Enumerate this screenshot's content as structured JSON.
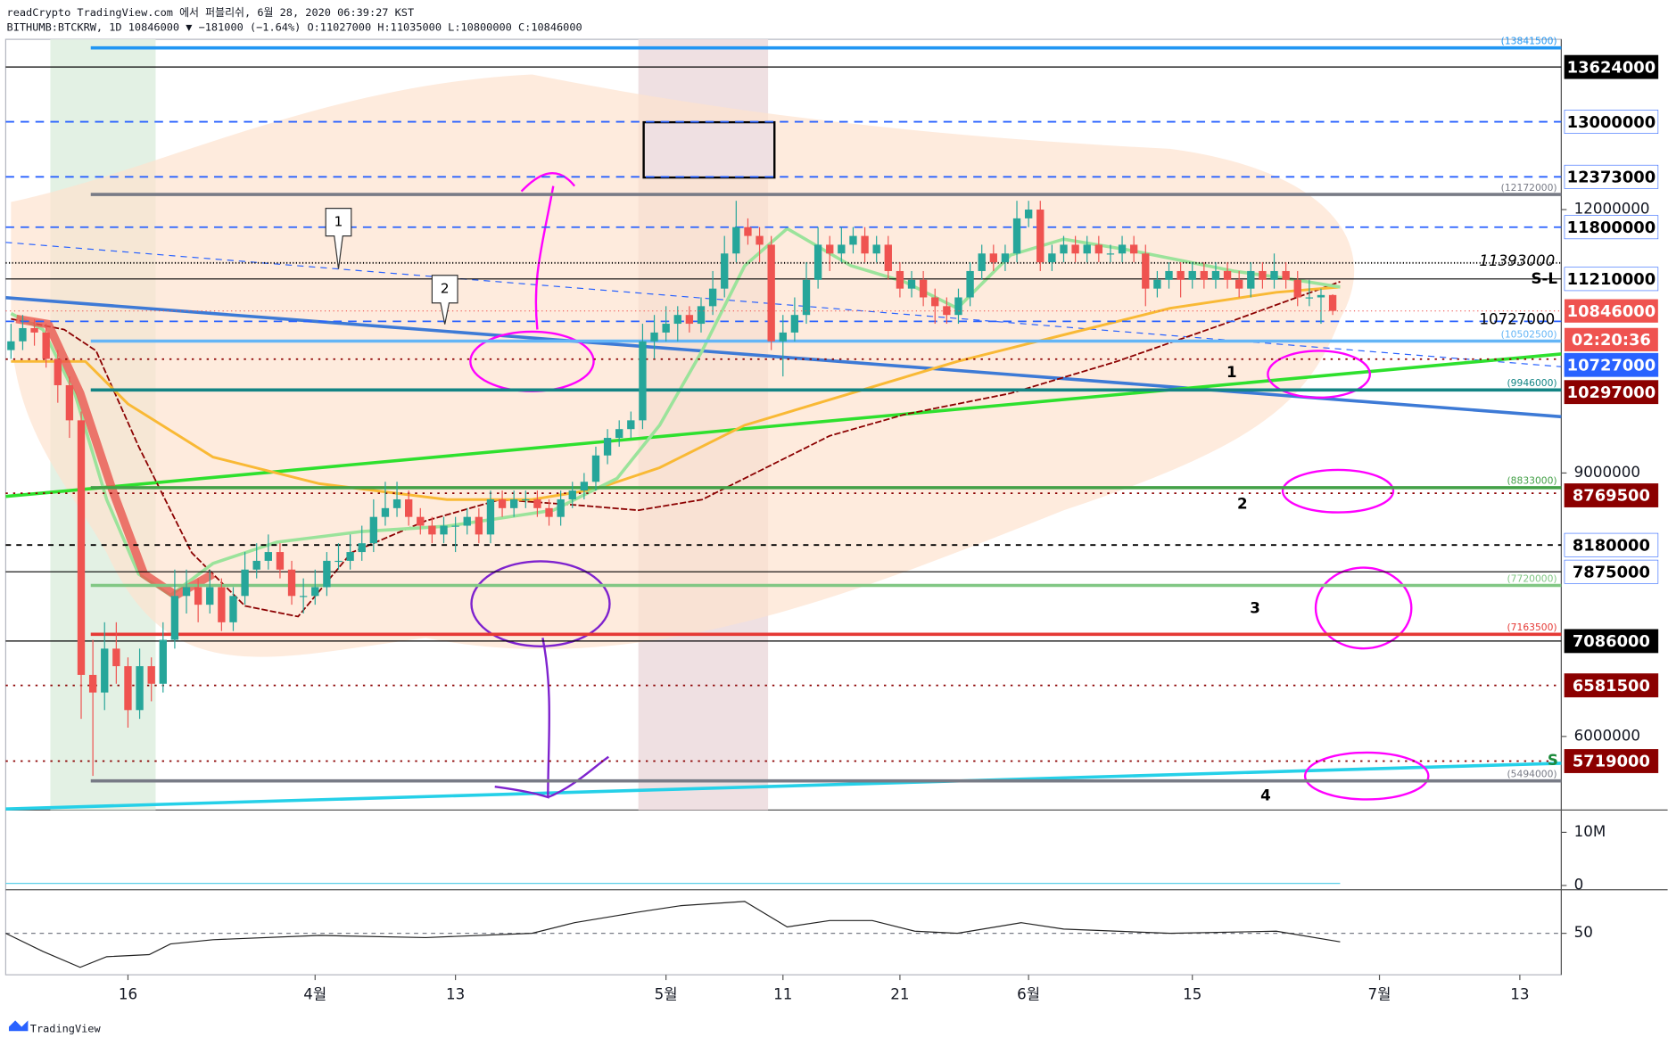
{
  "header": {
    "line1": "readCrypto TradingView.com 에서 퍼블리쉬, 6월 28, 2020 06:39:27 KST",
    "line2": "BITHUMB:BTCKRW, 1D 10846000 ▼ −181000 (−1.64%) O:11027000 H:11035000 L:10800000 C:10846000"
  },
  "footer": {
    "brand": "TradingView"
  },
  "chart_data": {
    "type": "candlestick",
    "symbol": "BITHUMB:BTCKRW",
    "interval": "1D",
    "candles": [
      [
        10400000,
        10700000,
        10300000,
        10500000
      ],
      [
        10500000,
        10800000,
        10400000,
        10650000
      ],
      [
        10650000,
        10750000,
        10450000,
        10600000
      ],
      [
        10600000,
        10700000,
        10200000,
        10300000
      ],
      [
        10300000,
        10400000,
        9800000,
        10000000
      ],
      [
        10000000,
        10100000,
        9400000,
        9600000
      ],
      [
        9600000,
        9700000,
        6200000,
        6700000
      ],
      [
        6700000,
        7100000,
        5550000,
        6500000
      ],
      [
        6500000,
        7300000,
        6300000,
        7000000
      ],
      [
        7000000,
        7300000,
        6600000,
        6800000
      ],
      [
        6800000,
        6900000,
        6100000,
        6300000
      ],
      [
        6300000,
        7000000,
        6200000,
        6800000
      ],
      [
        6800000,
        6900000,
        6400000,
        6600000
      ],
      [
        6600000,
        7300000,
        6500000,
        7100000
      ],
      [
        7100000,
        7900000,
        7000000,
        7600000
      ],
      [
        7600000,
        7900000,
        7400000,
        7700000
      ],
      [
        7700000,
        7800000,
        7300000,
        7500000
      ],
      [
        7500000,
        7900000,
        7400000,
        7700000
      ],
      [
        7700000,
        7800000,
        7200000,
        7300000
      ],
      [
        7300000,
        7700000,
        7200000,
        7600000
      ],
      [
        7600000,
        8100000,
        7500000,
        7900000
      ],
      [
        7900000,
        8200000,
        7800000,
        8000000
      ],
      [
        8000000,
        8300000,
        7900000,
        8100000
      ],
      [
        8100000,
        8200000,
        7800000,
        7900000
      ],
      [
        7900000,
        8000000,
        7500000,
        7600000
      ],
      [
        7600000,
        7800000,
        7400000,
        7600000
      ],
      [
        7600000,
        7900000,
        7500000,
        7700000
      ],
      [
        7700000,
        8100000,
        7600000,
        8000000
      ],
      [
        8000000,
        8200000,
        7900000,
        8000000
      ],
      [
        8000000,
        8300000,
        7900000,
        8100000
      ],
      [
        8100000,
        8400000,
        8000000,
        8200000
      ],
      [
        8200000,
        8700000,
        8100000,
        8500000
      ],
      [
        8500000,
        8900000,
        8400000,
        8600000
      ],
      [
        8600000,
        8900000,
        8500000,
        8700000
      ],
      [
        8700000,
        8800000,
        8400000,
        8500000
      ],
      [
        8500000,
        8600000,
        8300000,
        8400000
      ],
      [
        8400000,
        8500000,
        8200000,
        8300000
      ],
      [
        8300000,
        8500000,
        8200000,
        8400000
      ],
      [
        8400000,
        8500000,
        8100000,
        8400000
      ],
      [
        8400000,
        8600000,
        8300000,
        8500000
      ],
      [
        8500000,
        8600000,
        8200000,
        8300000
      ],
      [
        8300000,
        8800000,
        8200000,
        8700000
      ],
      [
        8700000,
        8800000,
        8500000,
        8600000
      ],
      [
        8600000,
        8800000,
        8500000,
        8700000
      ],
      [
        8700000,
        8800000,
        8600000,
        8700000
      ],
      [
        8700000,
        8800000,
        8500000,
        8600000
      ],
      [
        8600000,
        8700000,
        8400000,
        8500000
      ],
      [
        8500000,
        8800000,
        8400000,
        8700000
      ],
      [
        8700000,
        8900000,
        8600000,
        8800000
      ],
      [
        8800000,
        9000000,
        8700000,
        8900000
      ],
      [
        8900000,
        9300000,
        8800000,
        9200000
      ],
      [
        9200000,
        9500000,
        9100000,
        9400000
      ],
      [
        9400000,
        9600000,
        9300000,
        9500000
      ],
      [
        9500000,
        9700000,
        9400000,
        9600000
      ],
      [
        9600000,
        10700000,
        9500000,
        10500000
      ],
      [
        10500000,
        10800000,
        10300000,
        10600000
      ],
      [
        10600000,
        10900000,
        10500000,
        10700000
      ],
      [
        10700000,
        10900000,
        10500000,
        10800000
      ],
      [
        10800000,
        10900000,
        10600000,
        10700000
      ],
      [
        10700000,
        11000000,
        10600000,
        10900000
      ],
      [
        10900000,
        11300000,
        10800000,
        11100000
      ],
      [
        11100000,
        11700000,
        11000000,
        11500000
      ],
      [
        11500000,
        12100000,
        11400000,
        11800000
      ],
      [
        11800000,
        11900000,
        11600000,
        11700000
      ],
      [
        11700000,
        11800000,
        11400000,
        11600000
      ],
      [
        11600000,
        11700000,
        10400000,
        10500000
      ],
      [
        10500000,
        10800000,
        10100000,
        10600000
      ],
      [
        10600000,
        11000000,
        10500000,
        10800000
      ],
      [
        10800000,
        11400000,
        10700000,
        11200000
      ],
      [
        11200000,
        11800000,
        11100000,
        11600000
      ],
      [
        11600000,
        11700000,
        11300000,
        11500000
      ],
      [
        11500000,
        11800000,
        11400000,
        11600000
      ],
      [
        11600000,
        11800000,
        11500000,
        11700000
      ],
      [
        11700000,
        11800000,
        11400000,
        11500000
      ],
      [
        11500000,
        11700000,
        11400000,
        11600000
      ],
      [
        11600000,
        11700000,
        11200000,
        11300000
      ],
      [
        11300000,
        11400000,
        11000000,
        11100000
      ],
      [
        11100000,
        11300000,
        11000000,
        11200000
      ],
      [
        11200000,
        11300000,
        10900000,
        11000000
      ],
      [
        11000000,
        11100000,
        10700000,
        10900000
      ],
      [
        10900000,
        11000000,
        10700000,
        10800000
      ],
      [
        10800000,
        11100000,
        10700000,
        11000000
      ],
      [
        11000000,
        11400000,
        10900000,
        11300000
      ],
      [
        11300000,
        11600000,
        11200000,
        11500000
      ],
      [
        11500000,
        11600000,
        11300000,
        11400000
      ],
      [
        11400000,
        11600000,
        11300000,
        11500000
      ],
      [
        11500000,
        12100000,
        11400000,
        11900000
      ],
      [
        11900000,
        12100000,
        11800000,
        12000000
      ],
      [
        12000000,
        12100000,
        11300000,
        11400000
      ],
      [
        11400000,
        11600000,
        11300000,
        11500000
      ],
      [
        11500000,
        11700000,
        11400000,
        11600000
      ],
      [
        11600000,
        11700000,
        11400000,
        11500000
      ],
      [
        11500000,
        11700000,
        11400000,
        11600000
      ],
      [
        11600000,
        11700000,
        11400000,
        11500000
      ],
      [
        11500000,
        11600000,
        11400000,
        11500000
      ],
      [
        11500000,
        11700000,
        11400000,
        11600000
      ],
      [
        11600000,
        11700000,
        11400000,
        11500000
      ],
      [
        11500000,
        11600000,
        10900000,
        11100000
      ],
      [
        11100000,
        11300000,
        11000000,
        11200000
      ],
      [
        11200000,
        11400000,
        11100000,
        11300000
      ],
      [
        11300000,
        11400000,
        11000000,
        11200000
      ],
      [
        11200000,
        11400000,
        11100000,
        11300000
      ],
      [
        11300000,
        11400000,
        11100000,
        11200000
      ],
      [
        11200000,
        11400000,
        11100000,
        11300000
      ],
      [
        11300000,
        11400000,
        11100000,
        11200000
      ],
      [
        11200000,
        11300000,
        11000000,
        11100000
      ],
      [
        11100000,
        11400000,
        11000000,
        11300000
      ],
      [
        11300000,
        11400000,
        11100000,
        11200000
      ],
      [
        11200000,
        11500000,
        11100000,
        11300000
      ],
      [
        11300000,
        11400000,
        11100000,
        11200000
      ],
      [
        11200000,
        11300000,
        10900000,
        11000000
      ],
      [
        11000000,
        11200000,
        10900000,
        11000000
      ],
      [
        11000000,
        11100000,
        10700000,
        11027000
      ],
      [
        11027000,
        11035000,
        10800000,
        10846000
      ]
    ],
    "up_color": "#26a69a",
    "down_color": "#ef5350",
    "ylim": [
      5162000,
      13939000
    ],
    "yticks": [
      12000000,
      9000000,
      6000000
    ],
    "xticks": [
      {
        "value": 10,
        "label": "16"
      },
      {
        "value": 26,
        "label": "4월"
      },
      {
        "value": 38,
        "label": "13"
      },
      {
        "value": 56,
        "label": "5월"
      },
      {
        "value": 66,
        "label": "11"
      },
      {
        "value": 76,
        "label": "21"
      },
      {
        "value": 87,
        "label": "6월"
      },
      {
        "value": 101,
        "label": "15"
      },
      {
        "value": 117,
        "label": "7월"
      },
      {
        "value": 129,
        "label": "13"
      }
    ],
    "levels": [
      {
        "value": 13841500,
        "color": "#2196f3",
        "width": 3,
        "short": true,
        "label": "(13841500)"
      },
      {
        "value": 13624000,
        "color": "#000000",
        "width": 1,
        "badge": "#000000",
        "badge_text": "#ffffff"
      },
      {
        "value": 13000000,
        "color": "#2962ff",
        "dash": "8 6",
        "badge": "#ffffff",
        "badge_text": "#000000"
      },
      {
        "value": 12373000,
        "color": "#2962ff",
        "dash": "8 6",
        "badge": "#ffffff",
        "badge_text": "#000000"
      },
      {
        "value": 12172000,
        "color": "#787b86",
        "width": 3,
        "short": true,
        "label": "(12172000)"
      },
      {
        "value": 11800000,
        "color": "#2962ff",
        "dash": "8 6",
        "badge": "#ffffff",
        "badge_text": "#000000"
      },
      {
        "value": 11393000,
        "color": "#000000",
        "dash": "1 2",
        "text": "11393000"
      },
      {
        "value": 11210000,
        "color": "#000000",
        "width": 1,
        "badge": "#ffffff",
        "badge_text": "#000000"
      },
      {
        "value": 10727000,
        "color": "#2962ff",
        "dash": "8 6",
        "badge": "#2962ff",
        "badge_text": "#ffffff",
        "text": "10727000"
      },
      {
        "value": 10502500,
        "color": "#64b5f6",
        "width": 3,
        "short": true,
        "label": "(10502500)"
      },
      {
        "value": 10297000,
        "color": "#8b0000",
        "dash": "2 5",
        "badge": "#8b0000",
        "badge_text": "#ffffff"
      },
      {
        "value": 9946000,
        "color": "#138484",
        "width": 3,
        "short": true,
        "label": "(9946000)"
      },
      {
        "value": 8833000,
        "color": "#43a047",
        "width": 3,
        "short": true,
        "label": "(8833000)"
      },
      {
        "value": 8769500,
        "color": "#8b0000",
        "dash": "2 5",
        "badge": "#8b0000",
        "badge_text": "#ffffff"
      },
      {
        "value": 8180000,
        "color": "#000000",
        "dash": "5 5",
        "badge": "#ffffff",
        "badge_text": "#000000"
      },
      {
        "value": 7875000,
        "color": "#000000",
        "width": 1,
        "badge": "#ffffff",
        "badge_text": "#000000"
      },
      {
        "value": 7720000,
        "color": "#81c784",
        "width": 3,
        "short": true,
        "label": "(7720000)"
      },
      {
        "value": 7163500,
        "color": "#e53935",
        "width": 3,
        "short": true,
        "label": "(7163500)"
      },
      {
        "value": 7086000,
        "color": "#000000",
        "width": 1,
        "badge": "#000000",
        "badge_text": "#ffffff"
      },
      {
        "value": 6581500,
        "color": "#8b0000",
        "dash": "2 5",
        "badge": "#8b0000",
        "badge_text": "#ffffff"
      },
      {
        "value": 5719000,
        "color": "#8b0000",
        "dash": "2 5",
        "badge": "#8b0000",
        "badge_text": "#ffffff"
      },
      {
        "value": 5494000,
        "color": "#787b86",
        "width": 3,
        "short": true,
        "label": "(5494000)"
      }
    ],
    "last_price_color": "#ef5350",
    "countdown": "02:20:36",
    "volume_ticks": [
      {
        "value": 10000000,
        "label": "10M"
      },
      0
    ],
    "rsi_ticks": [
      50
    ],
    "annotations": {
      "callouts": [
        "1",
        "2"
      ],
      "zones": [
        "1",
        "2",
        "3",
        "4"
      ],
      "stop_loss": "S-L",
      "support": "S"
    }
  }
}
